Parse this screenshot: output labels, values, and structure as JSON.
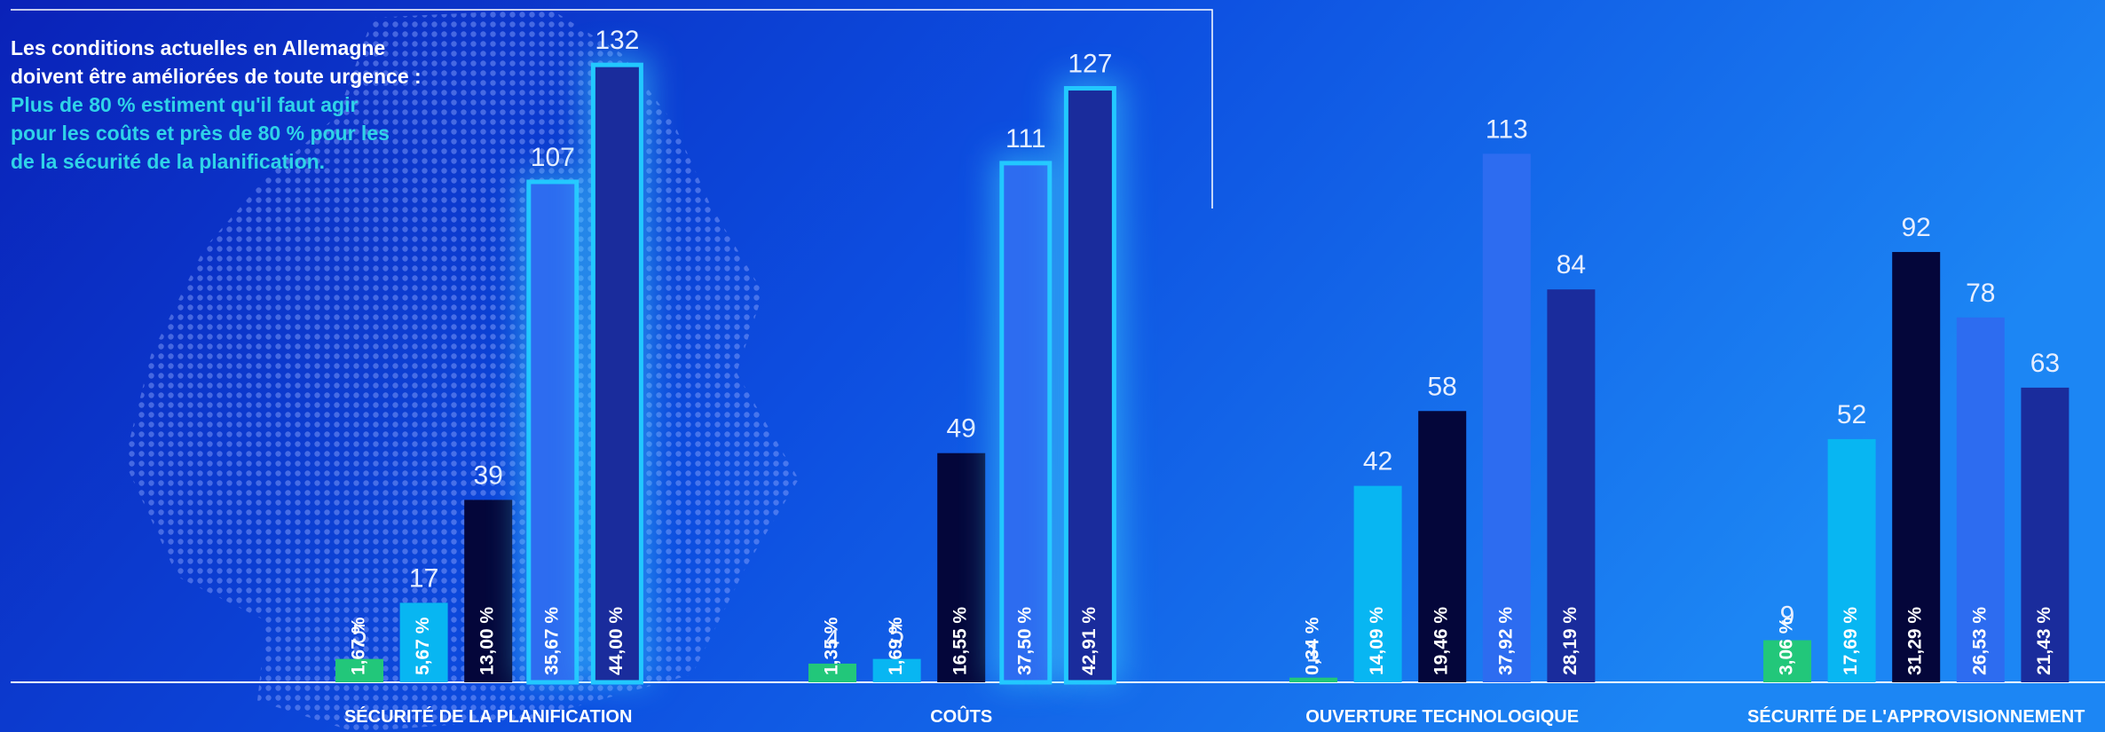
{
  "chart_data": {
    "type": "bar",
    "title_lines": [
      "Les conditions actuelles en Allemagne",
      "doivent être améliorées de toute urgence :"
    ],
    "subtitle_lines": [
      "Plus de 80 % estiment qu'il faut agir",
      "pour les coûts et près de 80 % pour les",
      "de la sécurité de la planification."
    ],
    "categories": [
      "SÉCURITÉ DE LA PLANIFICATION",
      "COÛTS",
      "OUVERTURE TECHNOLOGIQUE",
      "SÉCURITÉ DE L'APPROVISIONNEMENT"
    ],
    "series": [
      {
        "color": "#22c77a",
        "values": [
          5,
          4,
          1,
          9
        ],
        "share_labels": [
          "1,67 %",
          "1,35 %",
          "0,34 %",
          "3,06 %"
        ]
      },
      {
        "color": "#08b6f2",
        "values": [
          17,
          5,
          42,
          52
        ],
        "share_labels": [
          "5,67 %",
          "1,69 %",
          "14,09 %",
          "17,69 %"
        ]
      },
      {
        "color": "#04063a",
        "values": [
          39,
          49,
          58,
          92
        ],
        "share_labels": [
          "13,00 %",
          "16,55 %",
          "19,46 %",
          "31,29 %"
        ]
      },
      {
        "color": "#2d6cf0",
        "values": [
          107,
          111,
          113,
          78
        ],
        "share_labels": [
          "35,67 %",
          "37,50 %",
          "37,92 %",
          "26,53 %"
        ]
      },
      {
        "color": "#1a2c9c",
        "values": [
          132,
          127,
          84,
          63
        ],
        "share_labels": [
          "44,00 %",
          "42,91 %",
          "28,19 %",
          "21,43 %"
        ]
      }
    ],
    "ylim": [
      0,
      140
    ]
  }
}
